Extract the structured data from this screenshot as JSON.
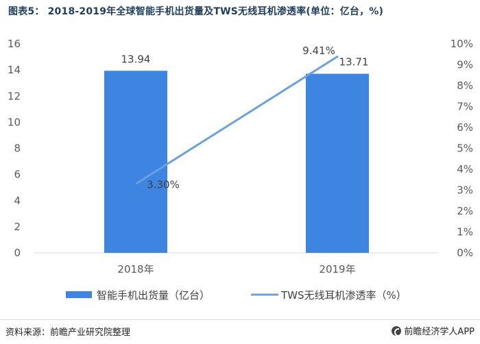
{
  "title": "图表5： 2018-2019年全球智能手机出货量及TWS无线耳机渗透率(单位：亿台，%)",
  "chart_data": {
    "type": "bar+line",
    "categories": [
      "2018年",
      "2019年"
    ],
    "series": [
      {
        "name": "智能手机出货量（亿台）",
        "type": "bar",
        "axis": "left",
        "values": [
          13.94,
          13.71
        ],
        "labels": [
          "13.94",
          "13.71"
        ],
        "color": "#3d85e0"
      },
      {
        "name": "TWS无线耳机渗透率（%）",
        "type": "line",
        "axis": "right",
        "values": [
          3.3,
          9.41
        ],
        "labels": [
          "3.30%",
          "9.41%"
        ],
        "color": "#6a9fe0"
      }
    ],
    "y_left": {
      "min": 0,
      "max": 16,
      "ticks": [
        "0",
        "2",
        "4",
        "6",
        "8",
        "10",
        "12",
        "14",
        "16"
      ]
    },
    "y_right": {
      "min": 0,
      "max": 10,
      "ticks": [
        "0%",
        "1%",
        "2%",
        "3%",
        "4%",
        "5%",
        "6%",
        "7%",
        "8%",
        "9%",
        "10%"
      ]
    },
    "grid": false,
    "legend_position": "bottom"
  },
  "footer": {
    "source": "资料来源：前瞻产业研究院整理",
    "brand": "前瞻经济学人APP",
    "brand_icon": "qianzhan-logo-icon"
  }
}
